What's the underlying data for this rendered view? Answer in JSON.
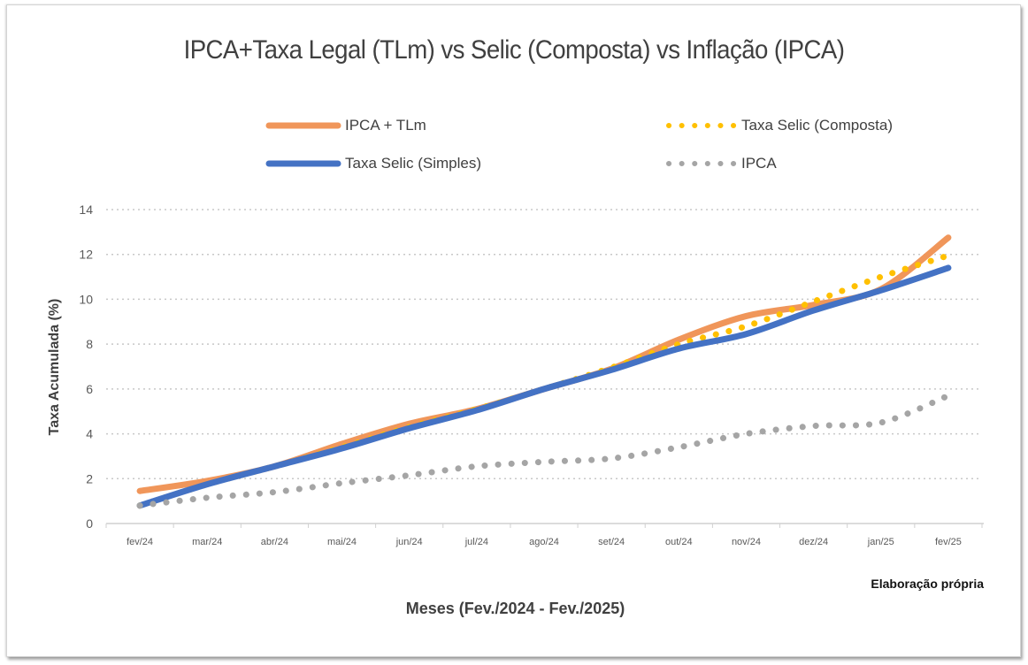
{
  "chart_data": {
    "type": "line",
    "title": "IPCA+Taxa Legal (TLm) vs Selic (Composta) vs Inflação (IPCA)",
    "xlabel": "Meses (Fev./2024 - Fev./2025)",
    "ylabel": "Taxa Acumulada (%)",
    "note": "Elaboração própria",
    "categories": [
      "fev/24",
      "mar/24",
      "abr/24",
      "mai/24",
      "jun/24",
      "jul/24",
      "ago/24",
      "set/24",
      "out/24",
      "nov/24",
      "dez/24",
      "jan/25",
      "fev/25"
    ],
    "ylim": [
      0,
      14
    ],
    "yticks": [
      0,
      2,
      4,
      6,
      8,
      10,
      12,
      14
    ],
    "grid": true,
    "legend_position": "top",
    "series": [
      {
        "name": "IPCA + TLm",
        "style": "solid",
        "color": "#F0965A",
        "values": [
          1.45,
          1.9,
          2.55,
          3.55,
          4.45,
          5.1,
          6.0,
          6.9,
          8.2,
          9.25,
          9.75,
          10.45,
          12.75
        ]
      },
      {
        "name": "Taxa Selic (Composta)",
        "style": "dotted",
        "color": "#FFC000",
        "values": [
          0.8,
          1.75,
          2.55,
          3.4,
          4.3,
          5.1,
          6.0,
          6.95,
          8.0,
          8.8,
          9.9,
          11.0,
          11.95
        ]
      },
      {
        "name": "Taxa Selic (Simples)",
        "style": "solid",
        "color": "#4472C4",
        "values": [
          0.8,
          1.75,
          2.55,
          3.35,
          4.25,
          5.05,
          6.0,
          6.85,
          7.8,
          8.45,
          9.5,
          10.4,
          11.4
        ]
      },
      {
        "name": "IPCA",
        "style": "dotted",
        "color": "#A5A5A5",
        "values": [
          0.8,
          1.15,
          1.4,
          1.8,
          2.15,
          2.55,
          2.75,
          2.9,
          3.4,
          4.0,
          4.35,
          4.5,
          5.7
        ]
      }
    ]
  }
}
